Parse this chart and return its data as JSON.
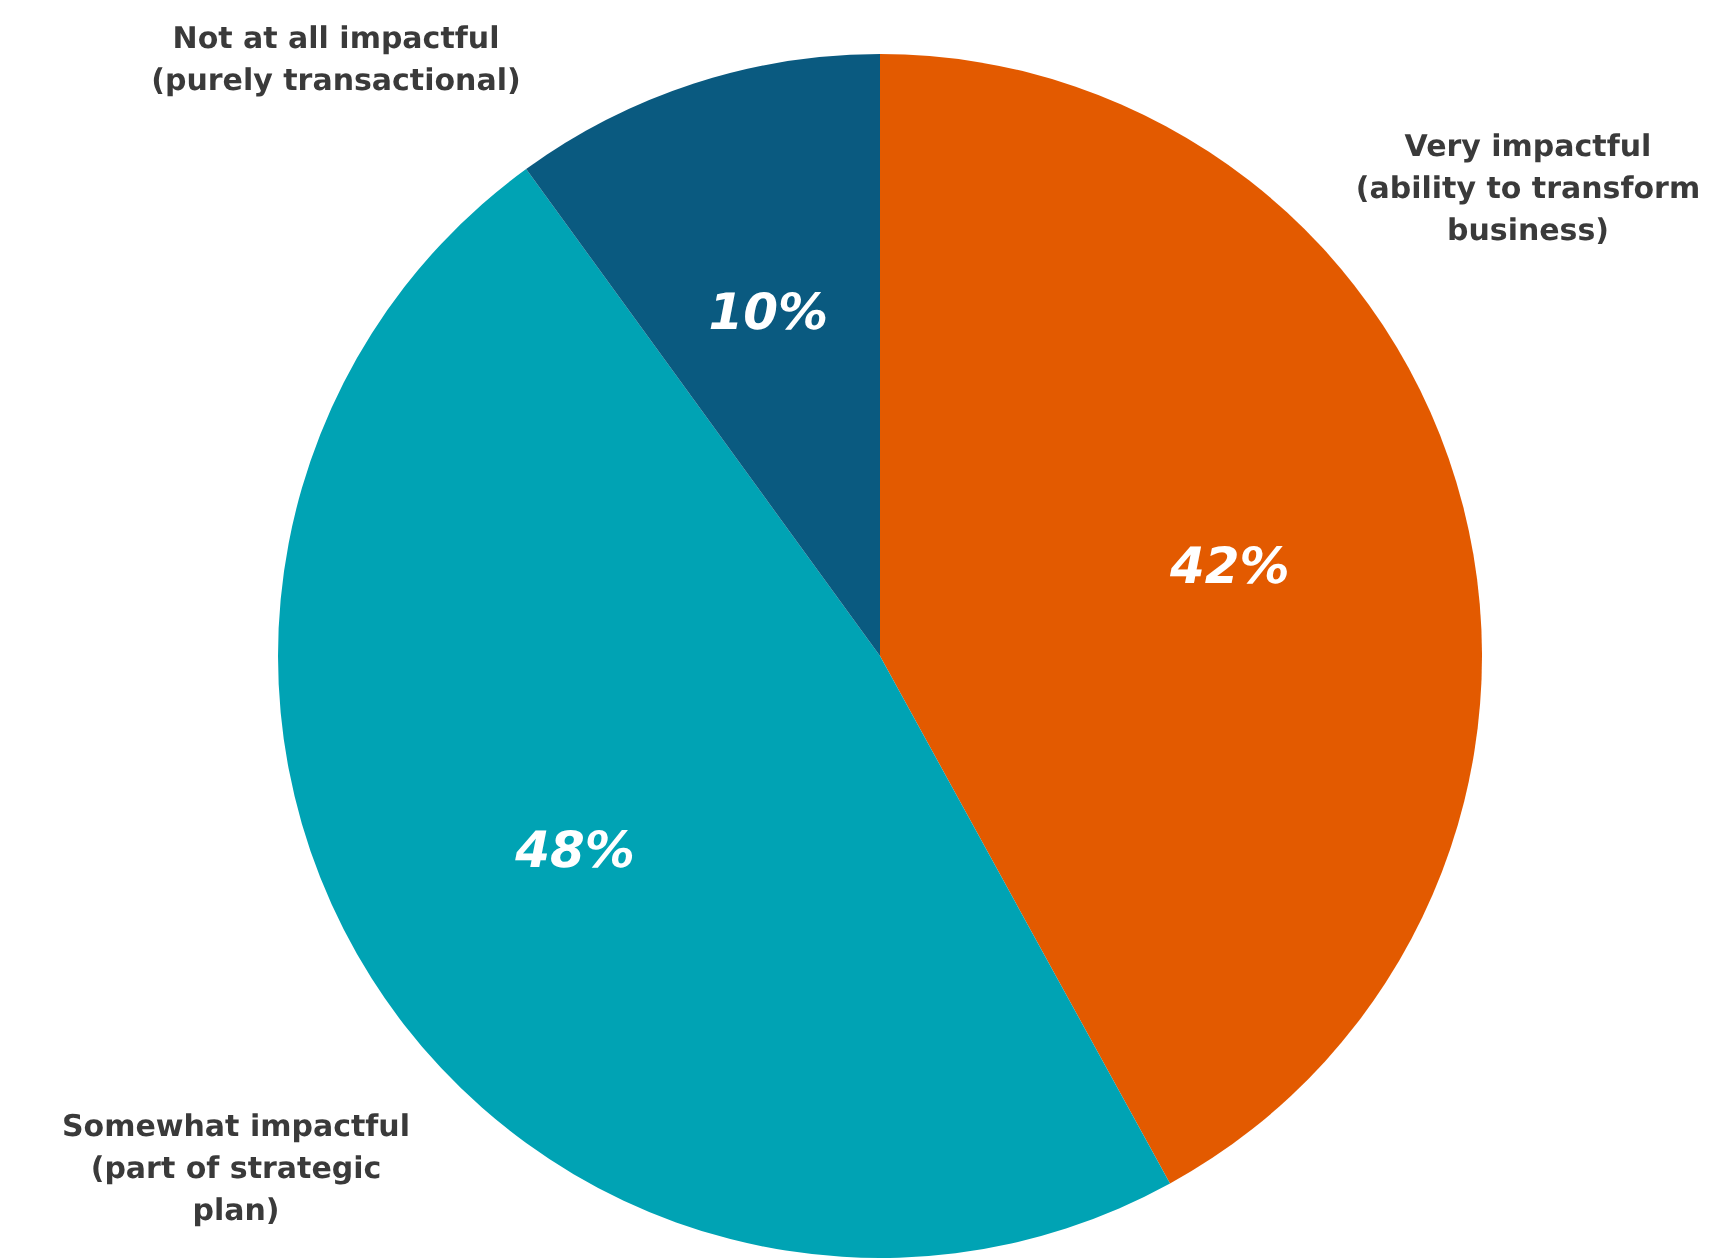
{
  "chart_data": {
    "type": "pie",
    "categories": [
      "Very impactful (ability to transform business)",
      "Somewhat impactful (part of strategic plan)",
      "Not at all impactful (purely transactional)"
    ],
    "values": [
      42,
      48,
      10
    ],
    "value_labels": [
      "42%",
      "48%",
      "10%"
    ],
    "colors": [
      "#e35a00",
      "#00a3b4",
      "#0a5a80"
    ]
  }
}
